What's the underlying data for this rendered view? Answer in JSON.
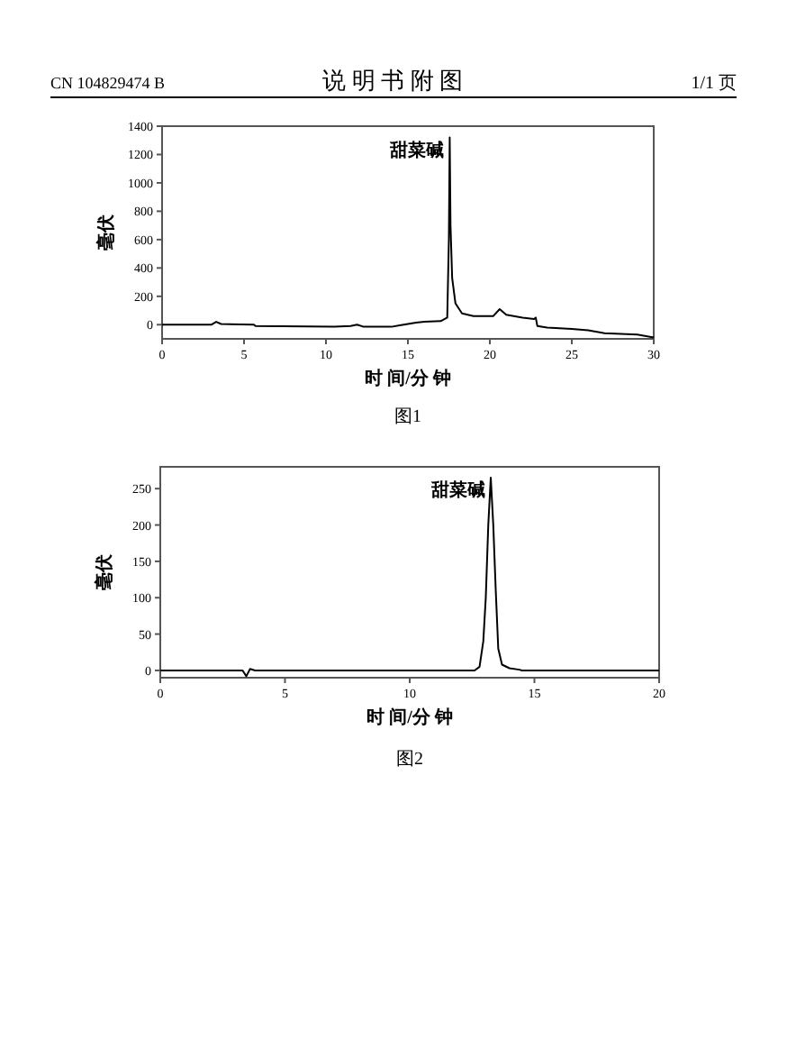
{
  "chart_data": [
    {
      "type": "other",
      "annotations": [
        "CN 104829474 B",
        "说 明 书 附 图",
        "1/1 页"
      ]
    },
    {
      "type": "line",
      "xlabel": "时 间/分 钟",
      "ylabel": "毫伏",
      "xlim": [
        0,
        30
      ],
      "ylim": [
        -100,
        1400
      ],
      "xticks": [
        0,
        5,
        10,
        15,
        20,
        25,
        30
      ],
      "yticks": [
        0,
        200,
        400,
        600,
        800,
        1000,
        1200,
        1400
      ],
      "series": [
        {
          "color": "#000000",
          "x": [
            0,
            3.0,
            3.3,
            3.6,
            5.6,
            5.7,
            10.5,
            11.5,
            11.9,
            12.3,
            14,
            14.5,
            15.5,
            16,
            17,
            17.4,
            17.5,
            17.55,
            17.6,
            17.7,
            17.9,
            18.3,
            19,
            20.2,
            20.6,
            21,
            22,
            22.7,
            22.8,
            22.9,
            23.5,
            25,
            26,
            27,
            29,
            30
          ],
          "values": [
            0,
            0,
            20,
            5,
            0,
            -10,
            -15,
            -10,
            0,
            -15,
            -15,
            -5,
            15,
            20,
            25,
            50,
            600,
            1320,
            700,
            330,
            150,
            80,
            60,
            60,
            110,
            70,
            50,
            40,
            50,
            -10,
            -20,
            -30,
            -40,
            -60,
            -70,
            -90
          ]
        }
      ],
      "annotations": [
        {
          "text": "甜菜碱",
          "x": 17.55,
          "y": 1320
        },
        "图1"
      ]
    },
    {
      "type": "line",
      "xlabel": "时 间/分 钟",
      "ylabel": "毫伏",
      "xlim": [
        0,
        20
      ],
      "ylim": [
        -10,
        280
      ],
      "xticks": [
        0,
        5,
        10,
        15,
        20
      ],
      "yticks": [
        0,
        50,
        100,
        150,
        200,
        250
      ],
      "series": [
        {
          "color": "#000000",
          "x": [
            0,
            3.3,
            3.45,
            3.6,
            3.8,
            12.6,
            12.8,
            12.95,
            13.05,
            13.15,
            13.25,
            13.35,
            13.45,
            13.55,
            13.7,
            14,
            14.4,
            14.5,
            20
          ],
          "values": [
            0,
            0,
            -8,
            2,
            0,
            0,
            5,
            40,
            100,
            200,
            265,
            200,
            110,
            30,
            8,
            3,
            1,
            0,
            0
          ]
        }
      ],
      "annotations": [
        {
          "text": "甜菜碱",
          "x": 13.25,
          "y": 265
        },
        "图2"
      ]
    }
  ]
}
